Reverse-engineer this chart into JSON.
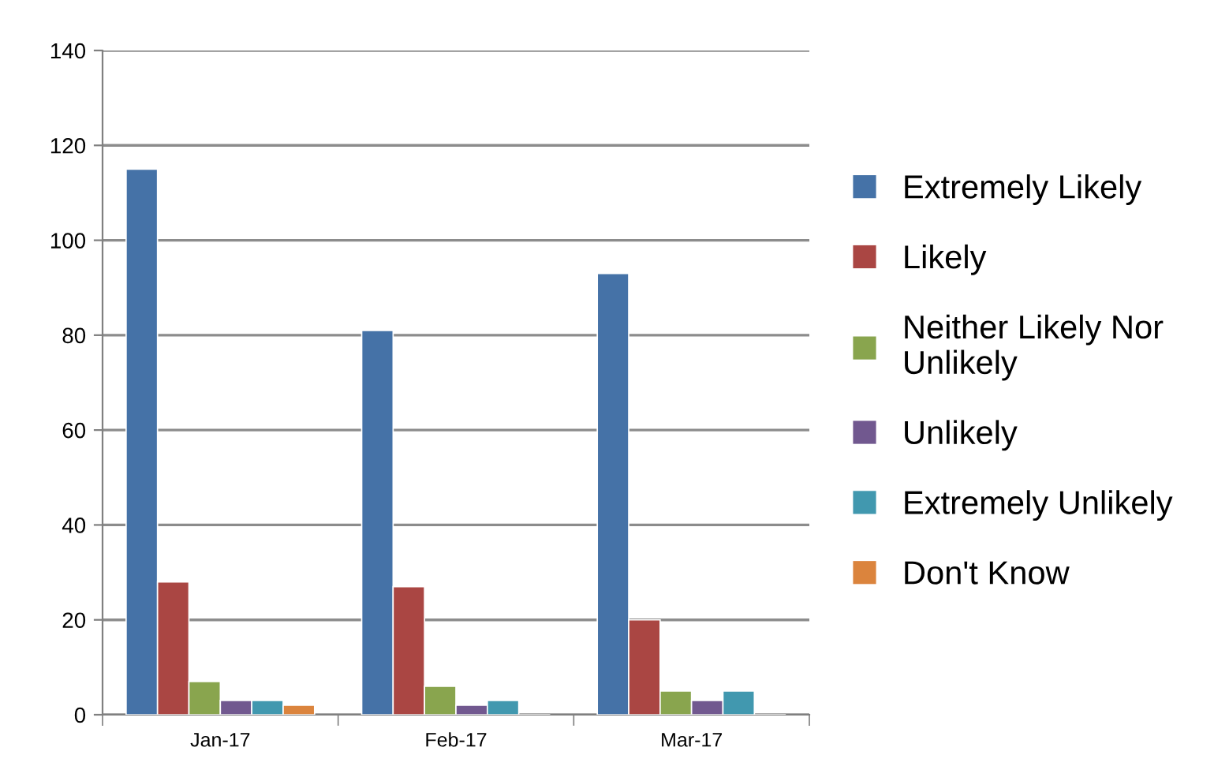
{
  "chart_data": {
    "type": "bar",
    "categories": [
      "Jan-17",
      "Feb-17",
      "Mar-17"
    ],
    "series": [
      {
        "name": "Extremely Likely",
        "color": "#4572a7",
        "values": [
          115,
          81,
          93
        ]
      },
      {
        "name": "Likely",
        "color": "#aa4643",
        "values": [
          28,
          27,
          20
        ]
      },
      {
        "name": "Neither Likely Nor\nUnlikely",
        "color": "#89a54e",
        "values": [
          7,
          6,
          5
        ]
      },
      {
        "name": "Unlikely",
        "color": "#71588f",
        "values": [
          3,
          2,
          3
        ]
      },
      {
        "name": "Extremely Unlikely",
        "color": "#4198af",
        "values": [
          3,
          3,
          5
        ]
      },
      {
        "name": "Don't Know",
        "color": "#db843d",
        "values": [
          2,
          null,
          null
        ]
      }
    ],
    "ylim": [
      0,
      140
    ],
    "yticks": [
      0,
      20,
      40,
      60,
      80,
      100,
      120,
      140
    ],
    "grid": "y",
    "legend": "right"
  }
}
